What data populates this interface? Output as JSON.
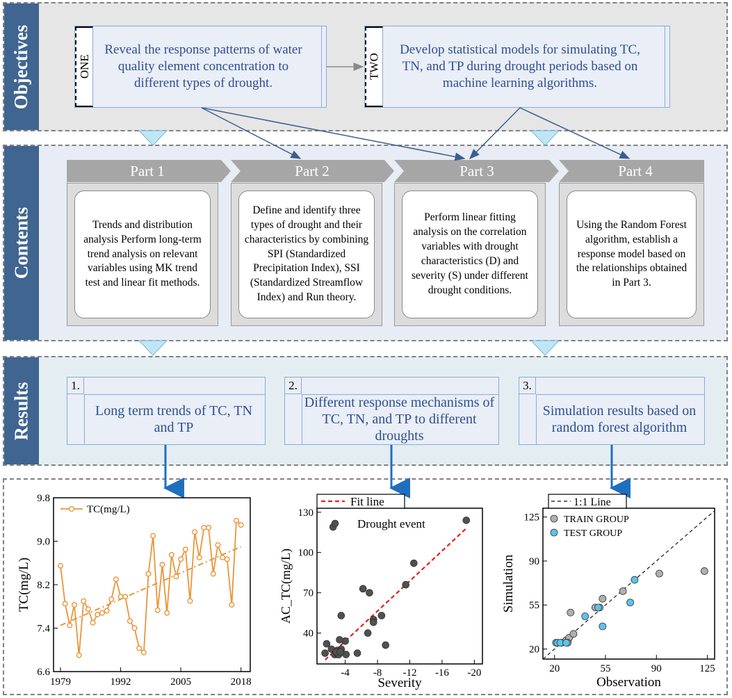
{
  "sections": {
    "objectives": "Objectives",
    "contents": "Contents",
    "results": "Results"
  },
  "objectives": [
    {
      "tag": "ONE",
      "text": "Reveal the response patterns of water quality element concentration to different types of drought."
    },
    {
      "tag": "TWO",
      "text": "Develop statistical models for simulating TC, TN, and TP during drought periods based on machine learning algorithms."
    }
  ],
  "parts": [
    {
      "title": "Part 1",
      "text": "Trends and distribution analysis Perform long-term trend analysis on relevant variables using MK trend test and linear fit methods."
    },
    {
      "title": "Part 2",
      "text": "Define and identify three types of drought and their characteristics by combining SPI (Standardized Precipitation Index), SSI (Standardized Streamflow Index) and Run theory."
    },
    {
      "title": "Part 3",
      "text": "Perform linear fitting analysis on the correlation variables with drought characteristics (D) and severity (S) under different drought conditions."
    },
    {
      "title": "Part 4",
      "text": "Using the Random Forest algorithm, establish a response model based on the relationships obtained in Part 3."
    }
  ],
  "results": [
    {
      "num": "1.",
      "text": "Long term trends of TC, TN and TP"
    },
    {
      "num": "2.",
      "text": "Different response mechanisms of TC, TN, and TP to different droughts"
    },
    {
      "num": "3.",
      "text": "Simulation results based on random forest algorithm"
    }
  ],
  "colors": {
    "tab": "#3f6590",
    "box_text": "#2f4f8f",
    "arrow": "#3a5f8f",
    "chevron": "#a6a6a6",
    "funnel": "#bfe6f5",
    "down_arrow": "#1f6fbf",
    "orange": "#e8963a",
    "fit_red": "#e02020",
    "point_gray": "#505050",
    "train_gray": "#b0b0b0",
    "test_blue": "#5cc3ec"
  },
  "chart_data": [
    {
      "type": "line",
      "legend": [
        "TC(mg/L)"
      ],
      "ylabel": "TC(mg/L)",
      "xlabel": "",
      "xticks": [
        "1979",
        "1992",
        "2005",
        "2018"
      ],
      "yticks": [
        "6.6",
        "7.4",
        "8.2",
        "9.0",
        "9.8"
      ],
      "xlim": [
        1977.5,
        2020
      ],
      "ylim": [
        6.6,
        9.8
      ],
      "series": [
        {
          "name": "TC(mg/L)",
          "x": [
            1979,
            1980,
            1981,
            1982,
            1983,
            1984,
            1985,
            1986,
            1987,
            1988,
            1989,
            1990,
            1991,
            1992,
            1993,
            1994,
            1995,
            1996,
            1997,
            1998,
            1999,
            2000,
            2001,
            2002,
            2003,
            2004,
            2005,
            2006,
            2007,
            2008,
            2009,
            2010,
            2011,
            2012,
            2013,
            2014,
            2015,
            2016,
            2017,
            2018
          ],
          "y": [
            8.55,
            7.85,
            7.45,
            7.83,
            6.9,
            7.9,
            7.75,
            7.5,
            7.65,
            7.68,
            7.72,
            7.93,
            8.3,
            7.98,
            7.98,
            7.53,
            7.4,
            7.03,
            6.95,
            8.4,
            9.1,
            7.73,
            8.57,
            7.68,
            8.75,
            8.35,
            8.67,
            8.85,
            7.9,
            9.17,
            8.7,
            9.25,
            9.25,
            8.4,
            8.93,
            8.7,
            8.67,
            7.83,
            9.38,
            9.3
          ]
        }
      ],
      "trend": {
        "x": [
          1979,
          2018
        ],
        "y": [
          7.45,
          8.9
        ]
      }
    },
    {
      "type": "scatter",
      "legend": [
        "Fit line",
        "Drought event"
      ],
      "xlabel": "Severity",
      "ylabel": "AC_TC(mg/L)",
      "xticks": [
        "-4",
        "-8",
        "-12",
        "-16",
        "-20"
      ],
      "yticks": [
        "40",
        "70",
        "100",
        "130"
      ],
      "xlim": [
        -0.5,
        -21
      ],
      "ylim": [
        17,
        133
      ],
      "series": [
        {
          "name": "Drought event",
          "x": [
            -2.5,
            -19,
            -12.5,
            -11.5,
            -6.2,
            -7,
            -8.5,
            -7.5,
            -7.5,
            -6.8,
            -3.5,
            -9,
            -4,
            -3.3,
            -3.5,
            -5.5,
            -1.5,
            -1.7,
            -2.3,
            -2.8,
            -2.7,
            -3.1,
            -3.2,
            -4.1,
            -3.0,
            -2.9,
            -3.4
          ],
          "y": [
            119,
            124,
            92,
            76,
            73,
            70,
            53,
            50,
            48,
            40,
            53,
            31,
            34,
            35,
            28,
            25,
            25,
            32,
            28,
            25,
            24,
            24,
            24,
            24,
            27,
            26,
            26
          ]
        }
      ],
      "fit": {
        "x": [
          -1.5,
          -19
        ],
        "y": [
          20,
          118
        ]
      }
    },
    {
      "type": "scatter",
      "legend": [
        "1:1 Line",
        "TRAIN GROUP",
        "TEST GROUP"
      ],
      "xlabel": "Observation",
      "ylabel": "Simulation",
      "xticks": [
        "20",
        "55",
        "90",
        "125"
      ],
      "yticks": [
        "20",
        "55",
        "90",
        "125"
      ],
      "xlim": [
        12,
        130
      ],
      "ylim": [
        12,
        132
      ],
      "series": [
        {
          "name": "TRAIN GROUP",
          "x": [
            25,
            28,
            29,
            30,
            31,
            29,
            33,
            48,
            51,
            53,
            67,
            92,
            123
          ],
          "y": [
            25,
            27,
            26,
            29,
            49,
            25,
            32,
            53,
            53,
            60,
            66,
            80,
            82
          ]
        },
        {
          "name": "TEST GROUP",
          "x": [
            21,
            22,
            24,
            28,
            41,
            50,
            53,
            72,
            75
          ],
          "y": [
            25,
            25,
            25,
            25,
            46,
            53,
            38,
            57,
            75
          ]
        }
      ],
      "ref_line": {
        "x": [
          12,
          130
        ],
        "y": [
          12,
          130
        ]
      }
    }
  ]
}
